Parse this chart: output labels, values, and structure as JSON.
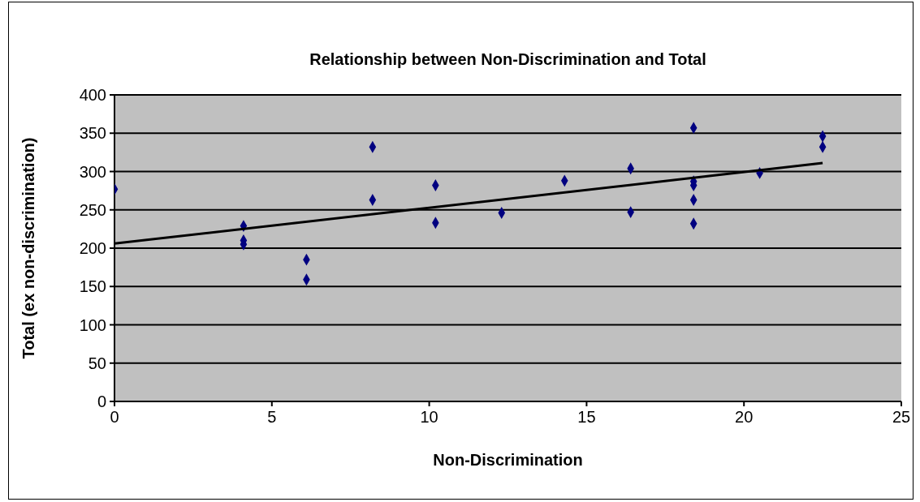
{
  "chart_data": {
    "type": "scatter",
    "title": "Relationship between Non-Discrimination and Total",
    "xlabel": "Non-Discrimination",
    "ylabel": "Total (ex non-discrimination)",
    "xlim": [
      0,
      25
    ],
    "xticks": [
      0,
      5,
      10,
      15,
      20,
      25
    ],
    "ylim": [
      0,
      400
    ],
    "yticks": [
      0,
      50,
      100,
      150,
      200,
      250,
      300,
      350,
      400
    ],
    "grid": "y",
    "series": [
      {
        "marker": "diamond",
        "color": "#000080",
        "x": [
          0,
          4.1,
          4.1,
          4.1,
          6.1,
          6.1,
          8.2,
          8.2,
          10.2,
          10.2,
          12.3,
          14.3,
          16.4,
          16.4,
          18.4,
          18.4,
          18.4,
          18.4,
          18.4,
          20.5,
          22.5,
          22.5
        ],
        "values": [
          277,
          229,
          210,
          205,
          185,
          159,
          332,
          263,
          282,
          233,
          246,
          288,
          304,
          247,
          357,
          287,
          282,
          263,
          232,
          298,
          346,
          332
        ]
      },
      {
        "type": "line",
        "marker": "none",
        "color": "#000000",
        "x": [
          0,
          22.5
        ],
        "values": [
          206,
          311
        ]
      }
    ]
  }
}
